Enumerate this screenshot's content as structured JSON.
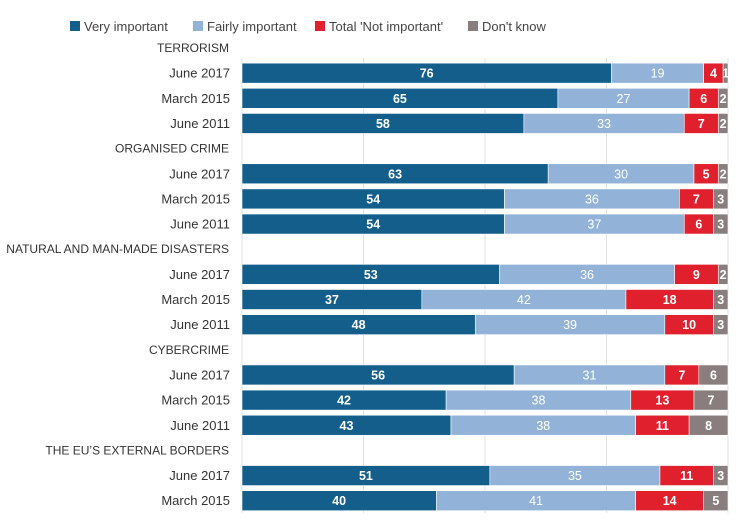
{
  "chart_data": {
    "type": "bar",
    "orientation": "horizontal",
    "stacked": true,
    "legend": {
      "position": "top",
      "entries": [
        {
          "name": "Very important",
          "color": "#135e8a"
        },
        {
          "name": "Fairly important",
          "color": "#92b3d7"
        },
        {
          "name": "Total 'Not important'",
          "color": "#e0202d"
        },
        {
          "name": "Don't know",
          "color": "#8a7d7e"
        }
      ]
    },
    "series_colors": [
      "#135e8a",
      "#92b3d7",
      "#e0202d",
      "#8a7d7e"
    ],
    "label_colors": [
      "#ffffff",
      "#ffffff",
      "#ffffff",
      "#ffffff"
    ],
    "xlim": [
      0,
      100
    ],
    "gridlines": [
      0,
      25,
      50,
      75,
      100
    ],
    "grid": true,
    "groups": [
      {
        "title": "TERRORISM",
        "rows": [
          {
            "label": "June 2017",
            "values": [
              76,
              19,
              4,
              1
            ]
          },
          {
            "label": "March 2015",
            "values": [
              65,
              27,
              6,
              2
            ]
          },
          {
            "label": "June 2011",
            "values": [
              58,
              33,
              7,
              2
            ]
          }
        ]
      },
      {
        "title": "ORGANISED CRIME",
        "rows": [
          {
            "label": "June 2017",
            "values": [
              63,
              30,
              5,
              2
            ]
          },
          {
            "label": "March 2015",
            "values": [
              54,
              36,
              7,
              3
            ]
          },
          {
            "label": "June 2011",
            "values": [
              54,
              37,
              6,
              3
            ]
          }
        ]
      },
      {
        "title": "NATURAL AND MAN-MADE DISASTERS",
        "rows": [
          {
            "label": "June 2017",
            "values": [
              53,
              36,
              9,
              2
            ]
          },
          {
            "label": "March 2015",
            "values": [
              37,
              42,
              18,
              3
            ]
          },
          {
            "label": "June 2011",
            "values": [
              48,
              39,
              10,
              3
            ]
          }
        ]
      },
      {
        "title": "CYBERCRIME",
        "rows": [
          {
            "label": "June 2017",
            "values": [
              56,
              31,
              7,
              6
            ]
          },
          {
            "label": "March 2015",
            "values": [
              42,
              38,
              13,
              7
            ]
          },
          {
            "label": "June 2011",
            "values": [
              43,
              38,
              11,
              8
            ]
          }
        ]
      },
      {
        "title": "THE EU’S EXTERNAL BORDERS",
        "rows": [
          {
            "label": "June 2017",
            "values": [
              51,
              35,
              11,
              3
            ]
          },
          {
            "label": "March 2015",
            "values": [
              40,
              41,
              14,
              5
            ]
          }
        ]
      }
    ]
  }
}
